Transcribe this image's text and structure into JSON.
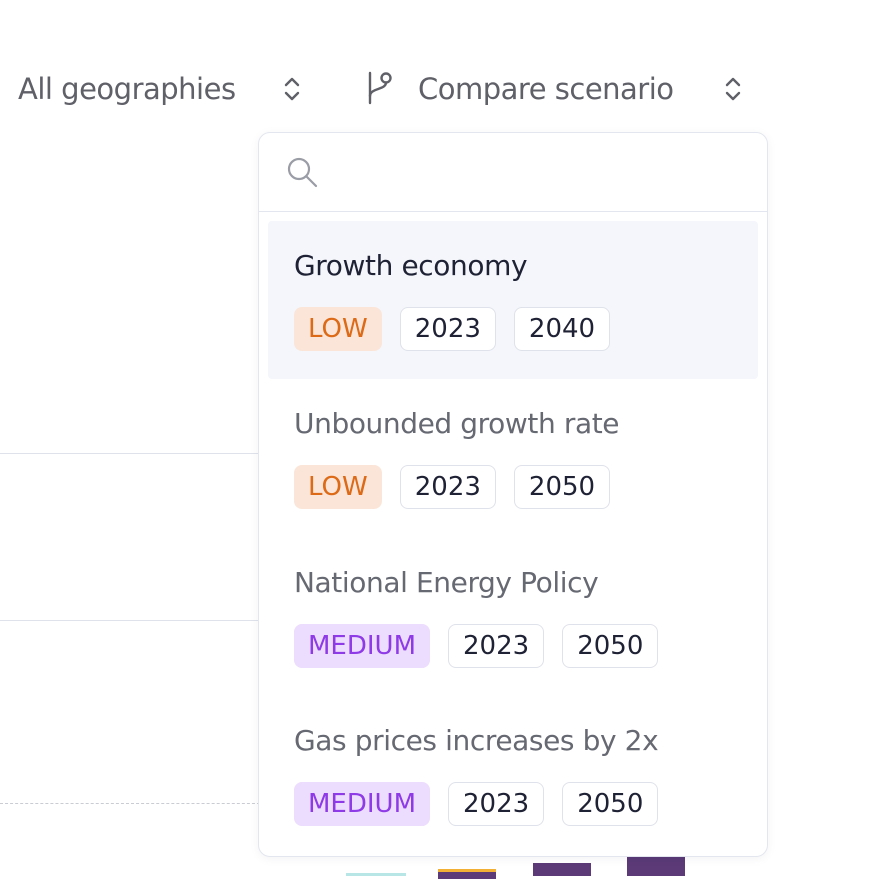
{
  "toolbar": {
    "geography_label": "All geographies",
    "compare_label": "Compare scenario"
  },
  "search": {
    "placeholder": ""
  },
  "scenarios": [
    {
      "title": "Growth economy",
      "level": "LOW",
      "start_year": "2023",
      "end_year": "2040",
      "active": true
    },
    {
      "title": "Unbounded growth rate",
      "level": "LOW",
      "start_year": "2023",
      "end_year": "2050"
    },
    {
      "title": "National Energy Policy",
      "level": "MEDIUM",
      "start_year": "2023",
      "end_year": "2050"
    },
    {
      "title": "Gas prices increases by 2x",
      "level": "MEDIUM",
      "start_year": "2023",
      "end_year": "2050"
    }
  ],
  "colors": {
    "low_bg": "#fbe5d8",
    "low_text": "#dd6a16",
    "medium_bg": "#ecdcfd",
    "medium_text": "#8e3ae6",
    "bar_purple": "#5b3a77"
  },
  "icons": [
    "chevron-up-down-icon",
    "branch-icon",
    "search-icon"
  ]
}
